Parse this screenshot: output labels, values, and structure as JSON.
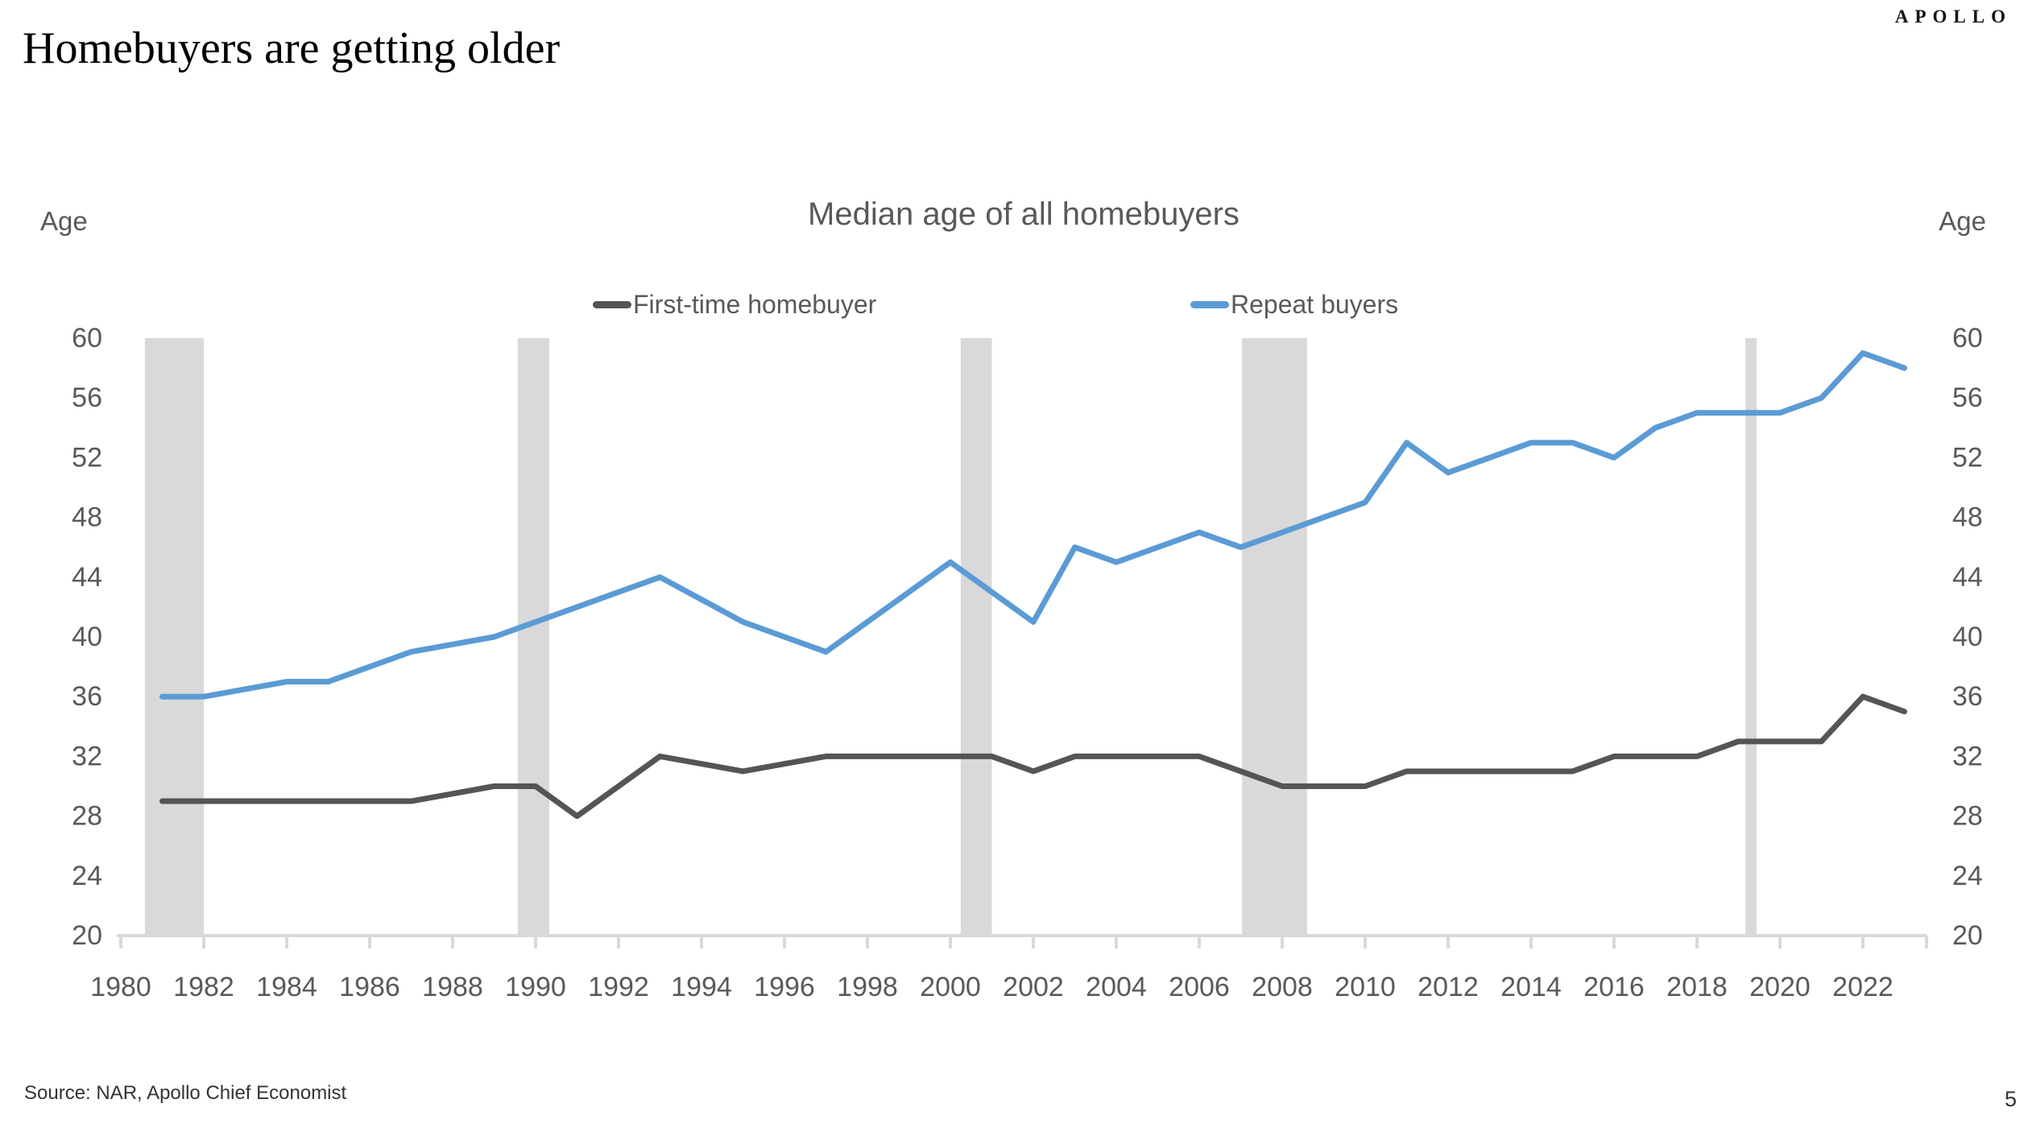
{
  "header": {
    "title": "Homebuyers are getting older",
    "logo": "APOLLO"
  },
  "chart": {
    "title": "Median age of all homebuyers",
    "y_axis_label_left": "Age",
    "y_axis_label_right": "Age",
    "legend": [
      {
        "label": "First-time homebuyer",
        "color": "#555555"
      },
      {
        "label": "Repeat buyers",
        "color": "#5B9BD5"
      }
    ]
  },
  "footer": {
    "source": "Source: NAR, Apollo Chief Economist",
    "page": "5"
  },
  "chart_data": {
    "type": "line",
    "title": "Median age of all homebuyers",
    "xlabel": "",
    "ylabel": "Age",
    "xlim": [
      1980,
      2023.5
    ],
    "ylim": [
      20,
      60
    ],
    "grid": false,
    "legend_position": "top",
    "x_ticks": [
      1980,
      1982,
      1984,
      1986,
      1988,
      1990,
      1992,
      1994,
      1996,
      1998,
      2000,
      2002,
      2004,
      2006,
      2008,
      2010,
      2012,
      2014,
      2016,
      2018,
      2020,
      2022
    ],
    "y_ticks": [
      20,
      24,
      28,
      32,
      36,
      40,
      44,
      48,
      52,
      56,
      60
    ],
    "x": [
      1981,
      1982,
      1983,
      1984,
      1985,
      1986,
      1987,
      1988,
      1989,
      1990,
      1991,
      1992,
      1993,
      1994,
      1995,
      1996,
      1997,
      1998,
      1999,
      2000,
      2001,
      2002,
      2003,
      2004,
      2005,
      2006,
      2007,
      2008,
      2009,
      2010,
      2011,
      2012,
      2013,
      2014,
      2015,
      2016,
      2017,
      2018,
      2019,
      2020,
      2021,
      2022,
      2023
    ],
    "series": [
      {
        "name": "First-time homebuyer",
        "color": "#555555",
        "values": [
          29,
          29,
          29,
          29,
          29,
          29,
          29,
          29.5,
          30,
          30,
          28,
          30,
          32,
          31.5,
          31,
          31.5,
          32,
          32,
          32,
          32,
          32,
          31,
          32,
          32,
          32,
          32,
          31,
          30,
          30,
          30,
          31,
          31,
          31,
          31,
          31,
          32,
          32,
          32,
          33,
          33,
          33,
          36,
          35
        ]
      },
      {
        "name": "Repeat buyers",
        "color": "#5B9BD5",
        "values": [
          36,
          36,
          36.5,
          37,
          37,
          38,
          39,
          39.5,
          40,
          41,
          42,
          43,
          44,
          42.5,
          41,
          40,
          39,
          41,
          43,
          45,
          43,
          41,
          46,
          45,
          46,
          47,
          46,
          47,
          48,
          49,
          53,
          51,
          52,
          53,
          53,
          52,
          54,
          55,
          55,
          55,
          56,
          59,
          58
        ]
      }
    ],
    "recession_bands": [
      [
        1980.58,
        1982.0
      ],
      [
        1989.57,
        1990.33
      ],
      [
        2000.25,
        2001.0
      ],
      [
        2007.03,
        2008.6
      ],
      [
        2019.17,
        2019.44
      ]
    ],
    "band_color": "#d9d9d9",
    "axis_color": "#d9d9d9",
    "tick_label_color": "#595959"
  }
}
